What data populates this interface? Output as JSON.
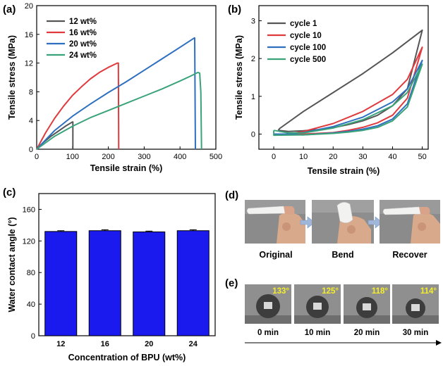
{
  "panel_labels": {
    "a": "(a)",
    "b": "(b)",
    "c": "(c)",
    "d": "(d)",
    "e": "(e)"
  },
  "chart_data": [
    {
      "panel": "a",
      "type": "line",
      "title": "",
      "xlabel": "Tensile strain (%)",
      "ylabel": "Tensile stress (MPa)",
      "xlim": [
        0,
        500
      ],
      "ylim": [
        0,
        20
      ],
      "xticks": [
        0,
        100,
        200,
        300,
        400,
        500
      ],
      "yticks": [
        0,
        4,
        8,
        12,
        16,
        20
      ],
      "legend_position": "top-left",
      "series": [
        {
          "name": "12 wt%",
          "color": "#555555",
          "x": [
            0,
            20,
            40,
            60,
            80,
            100,
            101,
            101
          ],
          "y": [
            0,
            1.0,
            1.8,
            2.5,
            3.2,
            3.8,
            3.8,
            0
          ]
        },
        {
          "name": "16 wt%",
          "color": "#e03a3e",
          "x": [
            0,
            25,
            50,
            75,
            100,
            125,
            150,
            175,
            200,
            225,
            228,
            229
          ],
          "y": [
            0,
            2.3,
            4.3,
            6.0,
            7.5,
            8.7,
            9.8,
            10.7,
            11.4,
            12.0,
            12.0,
            0
          ]
        },
        {
          "name": "20 wt%",
          "color": "#2e6fc0",
          "x": [
            0,
            50,
            100,
            150,
            200,
            250,
            300,
            350,
            400,
            440,
            441,
            443
          ],
          "y": [
            0,
            2.6,
            4.6,
            6.3,
            7.9,
            9.4,
            11.0,
            12.6,
            14.2,
            15.5,
            15.5,
            0
          ]
        },
        {
          "name": "24 wt%",
          "color": "#3aa37a",
          "x": [
            0,
            50,
            100,
            150,
            200,
            250,
            300,
            350,
            400,
            430,
            450,
            455,
            458,
            460
          ],
          "y": [
            0,
            1.8,
            3.2,
            4.4,
            5.4,
            6.4,
            7.4,
            8.4,
            9.5,
            10.2,
            10.7,
            10.6,
            8.0,
            0
          ]
        }
      ]
    },
    {
      "panel": "b",
      "type": "line",
      "title": "",
      "xlabel": "Tensile strain (%)",
      "ylabel": "Tensile stress (MPa)",
      "xlim": [
        -5,
        52
      ],
      "ylim": [
        -0.4,
        3.4
      ],
      "xticks": [
        0,
        10,
        20,
        30,
        40,
        50
      ],
      "yticks": [
        0,
        1,
        2,
        3
      ],
      "legend_position": "top-left",
      "series": [
        {
          "name": "cycle 1",
          "color": "#555555",
          "x": [
            1.5,
            2,
            10,
            20,
            30,
            40,
            50,
            50,
            45,
            40,
            35,
            30,
            25,
            20,
            15,
            10,
            5,
            1.5
          ],
          "y": [
            0.1,
            0.15,
            0.6,
            1.1,
            1.6,
            2.15,
            2.75,
            2.75,
            1.2,
            0.75,
            0.5,
            0.35,
            0.25,
            0.17,
            0.12,
            0.09,
            0.07,
            0.1
          ]
        },
        {
          "name": "cycle 10",
          "color": "#e03a3e",
          "x": [
            0,
            5,
            10,
            20,
            30,
            40,
            45,
            50,
            50,
            45,
            40,
            35,
            30,
            25,
            20,
            10,
            0
          ],
          "y": [
            0,
            0,
            0.07,
            0.28,
            0.6,
            1.05,
            1.45,
            2.3,
            2.3,
            0.95,
            0.5,
            0.3,
            0.18,
            0.1,
            0.04,
            0,
            0
          ]
        },
        {
          "name": "cycle 100",
          "color": "#2e6fc0",
          "x": [
            0,
            5,
            10,
            20,
            30,
            40,
            45,
            50,
            50,
            45,
            40,
            35,
            30,
            25,
            20,
            10,
            0
          ],
          "y": [
            0,
            0,
            0.04,
            0.2,
            0.45,
            0.85,
            1.2,
            1.95,
            1.95,
            0.8,
            0.4,
            0.22,
            0.13,
            0.07,
            0.03,
            -0.02,
            0
          ]
        },
        {
          "name": "cycle 500",
          "color": "#3aa37a",
          "x": [
            0,
            5,
            10,
            20,
            30,
            40,
            45,
            50,
            50,
            45,
            40,
            35,
            30,
            25,
            20,
            10,
            0,
            0
          ],
          "y": [
            0.1,
            0.03,
            0.03,
            0.16,
            0.38,
            0.75,
            1.1,
            1.85,
            1.85,
            0.72,
            0.35,
            0.18,
            0.1,
            0.05,
            0.02,
            -0.02,
            -0.03,
            0.1
          ]
        }
      ]
    },
    {
      "panel": "c",
      "type": "bar",
      "title": "",
      "xlabel": "Concentration of BPU (wt%)",
      "ylabel": "Water contact angle (°)",
      "categories": [
        "12",
        "16",
        "20",
        "24"
      ],
      "values": [
        132,
        133,
        131.5,
        133
      ],
      "errors": [
        1,
        1.2,
        1,
        1.2
      ],
      "ylim": [
        0,
        180
      ],
      "yticks": [
        0,
        40,
        80,
        120,
        160
      ],
      "bar_color": "#1a1aee"
    }
  ],
  "panel_d": {
    "labels": [
      "Original",
      "Bend",
      "Recover"
    ]
  },
  "panel_e": {
    "angles": [
      "133°",
      "125°",
      "118°",
      "114°"
    ],
    "times": [
      "0 min",
      "10 min",
      "20 min",
      "30 min"
    ]
  },
  "colors": {
    "axis": "#000000",
    "photo_bg": "#8a8a8a",
    "angle_text": "#f5ee2a",
    "arrow_blue": "#9fb6d8"
  }
}
